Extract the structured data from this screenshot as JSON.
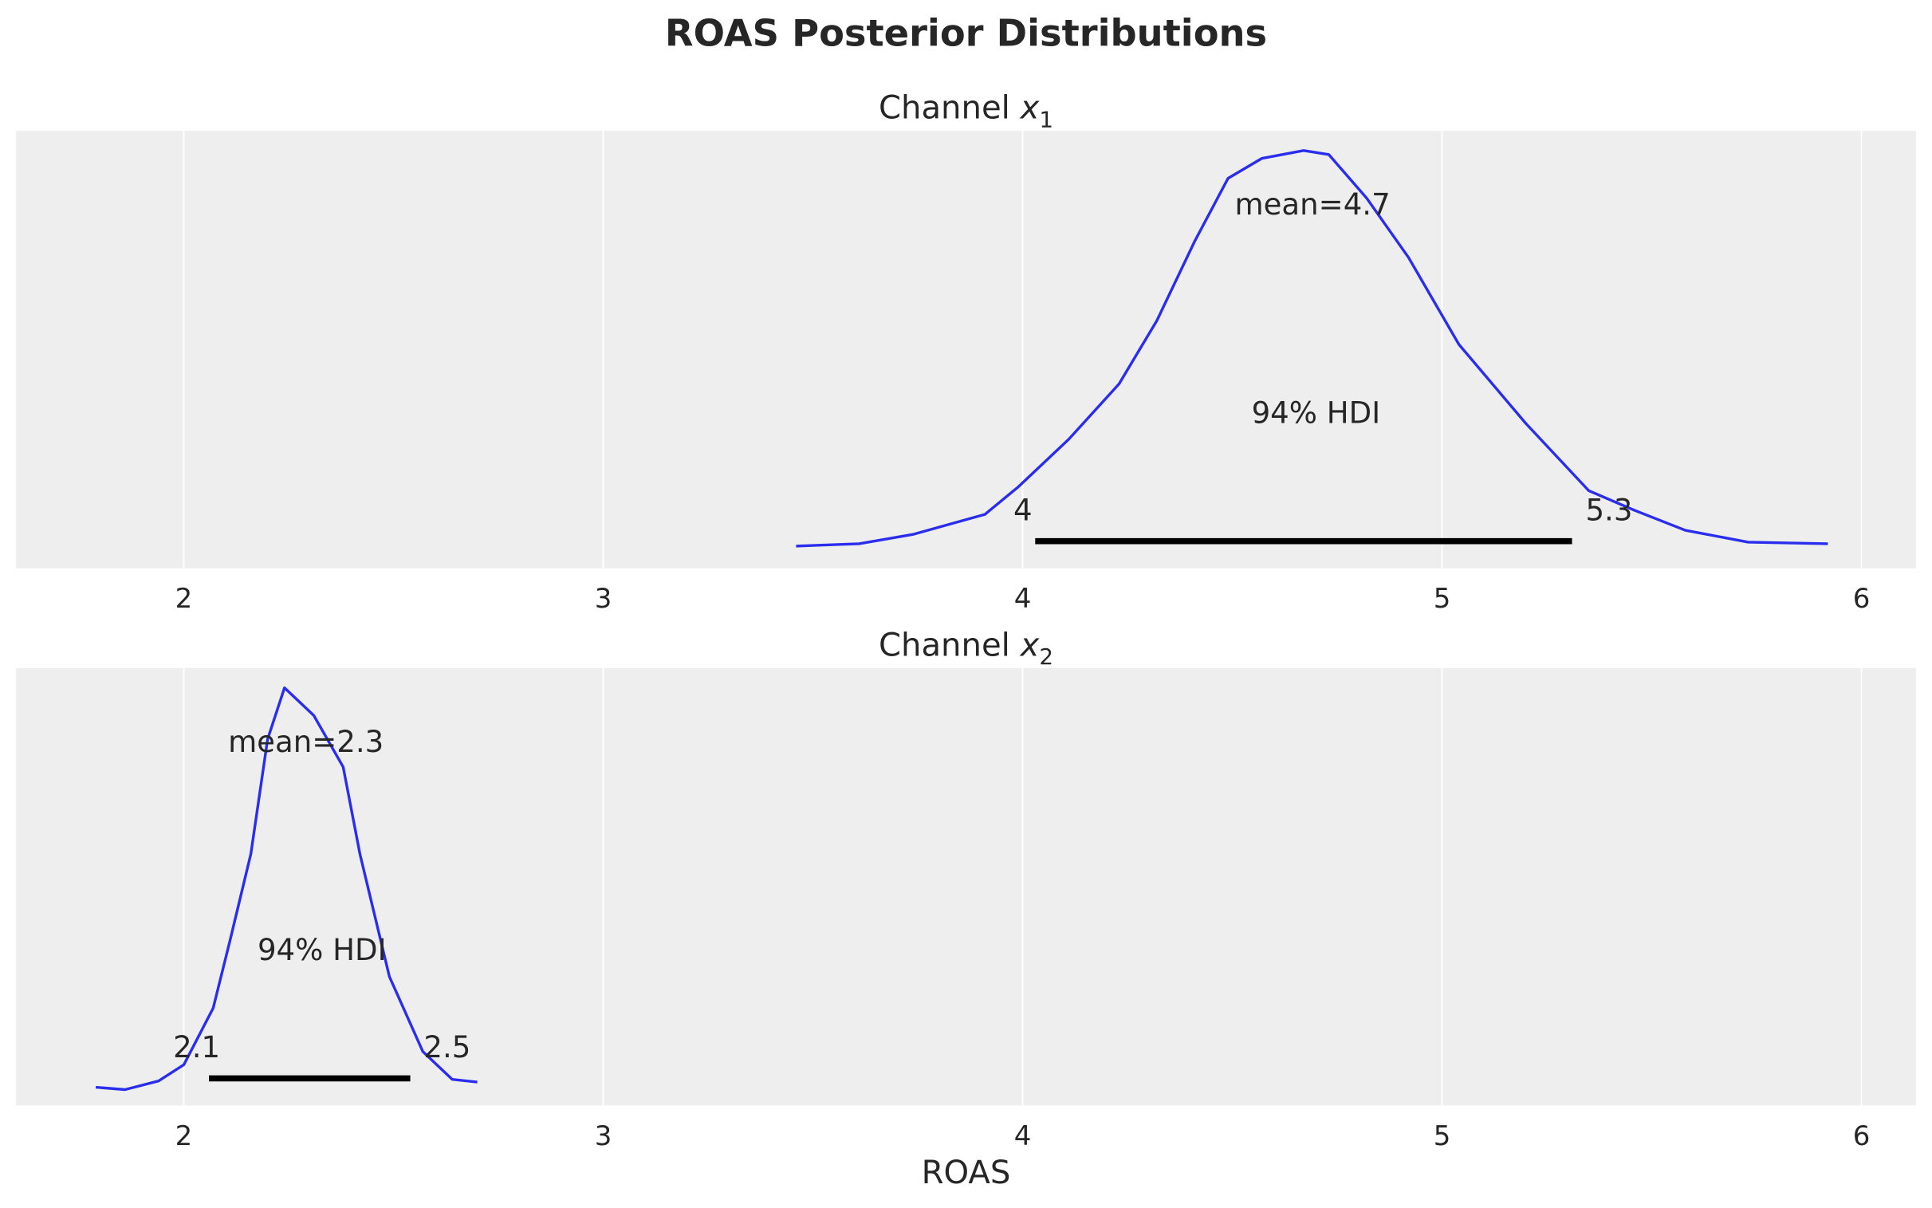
{
  "chart_data": {
    "type": "line",
    "title": "ROAS Posterior Distributions",
    "xlabel": "ROAS",
    "xlim": [
      1.6,
      6.13
    ],
    "xticks": [
      "2",
      "3",
      "4",
      "5",
      "6"
    ],
    "grid": true,
    "line_color": "#2a2eec",
    "hdi_color": "#000000",
    "background": "#eeeeee",
    "panels": [
      {
        "title_prefix": "Channel ",
        "title_var": "x",
        "title_sub": "1",
        "mean_label": "mean=4.7",
        "mean": 4.7,
        "hdi_label": "94% HDI",
        "hdi": [
          4.03,
          5.31
        ],
        "hdi_low_label": "4",
        "hdi_high_label": "5.3",
        "density": {
          "x": [
            3.46,
            3.61,
            3.74,
            3.91,
            3.99,
            4.11,
            4.23,
            4.32,
            4.41,
            4.49,
            4.57,
            4.67,
            4.73,
            4.82,
            4.92,
            5.04,
            5.2,
            5.35,
            5.46,
            5.58,
            5.73,
            5.92
          ],
          "y": [
            0,
            0.006,
            0.03,
            0.08,
            0.15,
            0.27,
            0.41,
            0.57,
            0.77,
            0.93,
            0.98,
            1.0,
            0.99,
            0.88,
            0.73,
            0.51,
            0.31,
            0.14,
            0.09,
            0.04,
            0.01,
            0.006
          ]
        }
      },
      {
        "title_prefix": "Channel ",
        "title_var": "x",
        "title_sub": "2",
        "mean_label": "mean=2.3",
        "mean": 2.3,
        "hdi_label": "94% HDI",
        "hdi": [
          2.06,
          2.54
        ],
        "hdi_low_label": "2.1",
        "hdi_high_label": "2.5",
        "density": {
          "x": [
            1.79,
            1.86,
            1.94,
            2.0,
            2.07,
            2.11,
            2.16,
            2.2,
            2.24,
            2.31,
            2.38,
            2.42,
            2.49,
            2.57,
            2.64,
            2.7
          ],
          "y": [
            -0.01,
            -0.016,
            0.006,
            0.047,
            0.19,
            0.36,
            0.58,
            0.87,
            1.0,
            0.93,
            0.8,
            0.58,
            0.27,
            0.08,
            0.01,
            0.003
          ]
        }
      }
    ]
  }
}
